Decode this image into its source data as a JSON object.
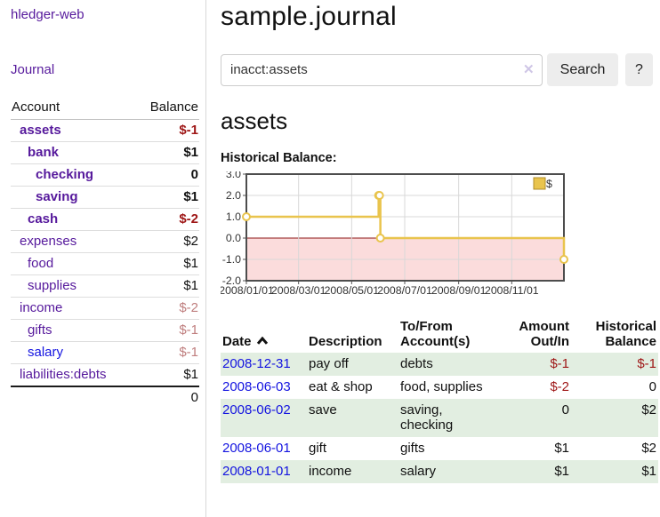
{
  "colors": {
    "purple_link": "#56199c",
    "blue_link": "#1414e0",
    "negative_strong": "#9e1616",
    "negative_soft": "#bf7e7e",
    "row_stripe_green": "#e2eee1",
    "button_bg": "#ededed",
    "chart_line_gold": "#e9c44d",
    "chart_negative_fill": "#fbdcdc",
    "chart_zero_line": "#8c1717",
    "chart_border": "#4d4d4d"
  },
  "sidebar": {
    "app_title": "hledger-web",
    "journal_label": "Journal",
    "accounts_header": {
      "account": "Account",
      "balance": "Balance"
    },
    "accounts": [
      {
        "name": "assets",
        "level": 1,
        "bold": true,
        "balance": "$-1"
      },
      {
        "name": "bank",
        "level": 2,
        "bold": true,
        "balance": "$1"
      },
      {
        "name": "checking",
        "level": 3,
        "bold": true,
        "balance": "0"
      },
      {
        "name": "saving",
        "level": 3,
        "bold": true,
        "balance": "$1"
      },
      {
        "name": "cash",
        "level": 2,
        "bold": true,
        "balance": "$-2"
      },
      {
        "name": "expenses",
        "level": 1,
        "bold": false,
        "balance": "$2"
      },
      {
        "name": "food",
        "level": 2,
        "bold": false,
        "balance": "$1"
      },
      {
        "name": "supplies",
        "level": 2,
        "bold": false,
        "balance": "$1"
      },
      {
        "name": "income",
        "level": 1,
        "bold": false,
        "balance": "$-2"
      },
      {
        "name": "gifts",
        "level": 2,
        "bold": false,
        "balance": "$-1"
      },
      {
        "name": "salary",
        "level": 2,
        "bold": false,
        "balance": "$-1",
        "link_color": "blue"
      },
      {
        "name": "liabilities:debts",
        "level": 1,
        "bold": false,
        "balance": "$1"
      }
    ],
    "total": "0"
  },
  "main": {
    "title": "sample.journal",
    "search": {
      "value": "inacct:assets",
      "clear_icon": "✕",
      "button_label": "Search",
      "help_label": "?"
    },
    "account_heading": "assets",
    "chart_label": "Historical Balance:"
  },
  "chart_data": {
    "type": "line",
    "title": "Historical Balance",
    "step": true,
    "legend": [
      {
        "label": "$",
        "color": "#e9c44d"
      }
    ],
    "legend_position": "top-right",
    "grid": true,
    "negative_region_shaded": true,
    "x_range": [
      "2008-01-01",
      "2008-12-31"
    ],
    "ylim": [
      -2,
      3
    ],
    "y_ticks": [
      3.0,
      2.0,
      1.0,
      0.0,
      -1.0,
      -2.0
    ],
    "x_tick_dates": [
      "2008-01-01",
      "2008-03-01",
      "2008-05-01",
      "2008-07-01",
      "2008-09-01",
      "2008-11-01"
    ],
    "x_tick_labels": [
      "2008/01/01",
      "2008/03/01",
      "2008/05/01",
      "2008/07/01",
      "2008/09/01",
      "2008/11/01"
    ],
    "series": [
      {
        "name": "$",
        "points": [
          [
            "2008-01-01",
            1
          ],
          [
            "2008-06-01",
            2
          ],
          [
            "2008-06-02",
            2
          ],
          [
            "2008-06-03",
            0
          ],
          [
            "2008-12-31",
            -1
          ]
        ]
      }
    ]
  },
  "register": {
    "headers": {
      "date": "Date",
      "description": "Description",
      "accounts": "To/From Account(s)",
      "amount": "Amount Out/In",
      "balance": "Historical Balance"
    },
    "sort_icon": "chevron-up",
    "rows": [
      {
        "date": "2008-12-31",
        "description": "pay off",
        "accounts": "debts",
        "amount": "$-1",
        "balance": "$-1"
      },
      {
        "date": "2008-06-03",
        "description": "eat & shop",
        "accounts": "food, supplies",
        "amount": "$-2",
        "balance": "0"
      },
      {
        "date": "2008-06-02",
        "description": "save",
        "accounts": "saving, checking",
        "amount": "0",
        "balance": "$2"
      },
      {
        "date": "2008-06-01",
        "description": "gift",
        "accounts": "gifts",
        "amount": "$1",
        "balance": "$2"
      },
      {
        "date": "2008-01-01",
        "description": "income",
        "accounts": "salary",
        "amount": "$1",
        "balance": "$1"
      }
    ]
  }
}
